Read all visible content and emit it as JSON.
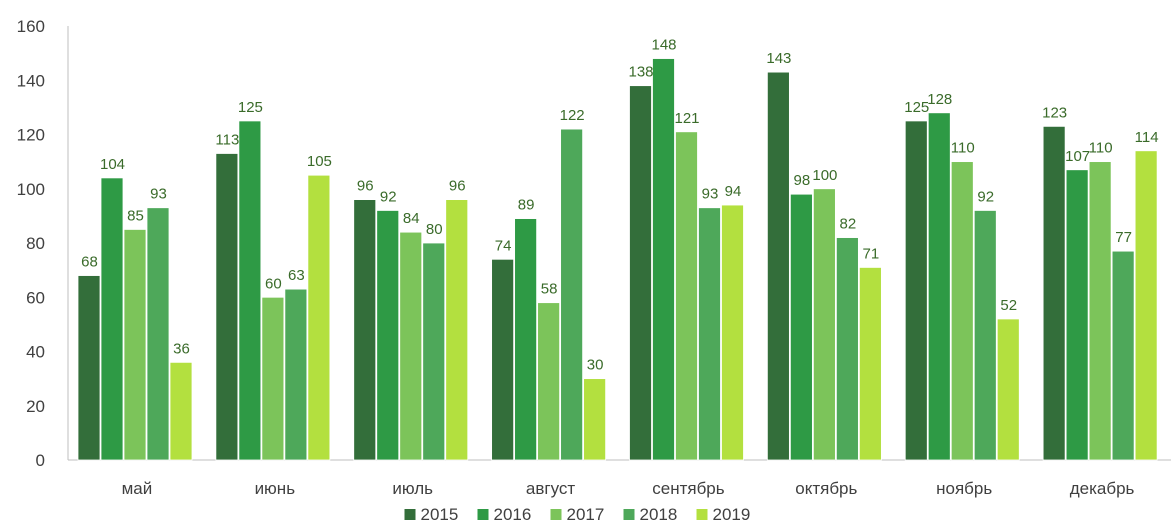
{
  "chart_data": {
    "type": "bar",
    "title": "",
    "xlabel": "",
    "ylabel": "",
    "ylim": [
      0,
      160
    ],
    "yticks": [
      0,
      20,
      40,
      60,
      80,
      100,
      120,
      140,
      160
    ],
    "grid": false,
    "legend_position": "bottom",
    "categories": [
      "май",
      "июнь",
      "июль",
      "август",
      "сентябрь",
      "октябрь",
      "ноябрь",
      "декабрь"
    ],
    "series": [
      {
        "name": "2015",
        "color": "#336e3a",
        "values": [
          68,
          113,
          96,
          74,
          138,
          143,
          125,
          123
        ]
      },
      {
        "name": "2016",
        "color": "#2e9a45",
        "values": [
          104,
          125,
          92,
          89,
          148,
          98,
          128,
          107
        ]
      },
      {
        "name": "2017",
        "color": "#7cc45a",
        "values": [
          85,
          60,
          84,
          58,
          121,
          100,
          110,
          110
        ]
      },
      {
        "name": "2018",
        "color": "#4ea85a",
        "values": [
          93,
          63,
          80,
          122,
          93,
          82,
          92,
          77
        ]
      },
      {
        "name": "2019",
        "color": "#b3e03f",
        "values": [
          36,
          105,
          96,
          30,
          94,
          71,
          52,
          114
        ]
      }
    ]
  }
}
